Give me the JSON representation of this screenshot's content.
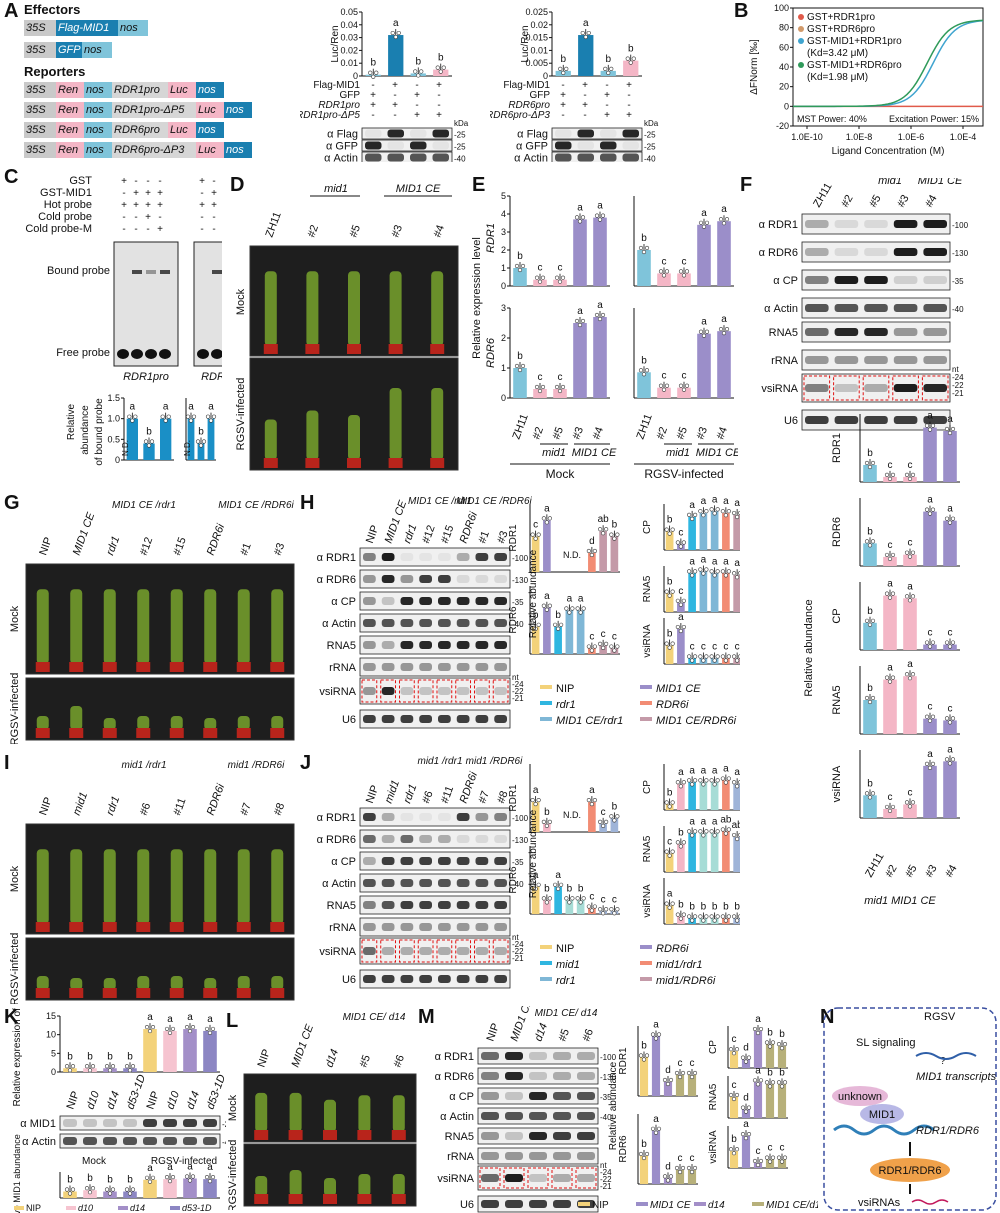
{
  "colors": {
    "zh11": "#7fc4da",
    "mid1": "#f4b6c6",
    "mid1ce": "#9b8ec9",
    "nip": "#f3d27a",
    "rdr1": "#2fb6e0",
    "rdr6i": "#f28c74",
    "mid1ce_rdr1": "#7fb7d6",
    "mid1ce_rdr6i": "#c49aa8",
    "mid1_rdr1": "#a7dcd6",
    "mid1_rdr6i": "#9fb4d8",
    "d10": "#f6c4d0",
    "d14": "#a38fc8",
    "d53": "#8c86c3",
    "mid1ce_d14": "#b7b07a",
    "gst": "#e05a4a",
    "gst_rdr6": "#d19a6a",
    "gst_mid1_rdr1": "#3fa4cf",
    "gst_mid1_rdr6": "#2f9a5a",
    "red_dash": "#e11111"
  },
  "panel_labels": [
    "A",
    "B",
    "C",
    "D",
    "E",
    "F",
    "G",
    "H",
    "I",
    "J",
    "K",
    "L",
    "M",
    "N"
  ],
  "panelA": {
    "effectors_title": "Effectors",
    "reporters_title": "Reporters",
    "effector_rows": [
      {
        "p": "35S",
        "g": "Flag-MID1",
        "t": "nos"
      },
      {
        "p": "35S",
        "g": "GFP",
        "t": "nos"
      }
    ],
    "reporter_rows": [
      {
        "p": "35S",
        "r": "Ren",
        "n": "nos",
        "pro": "RDR1pro",
        "luc": "Luc",
        "t": "nos"
      },
      {
        "p": "35S",
        "r": "Ren",
        "n": "nos",
        "pro": "RDR1pro-ΔP5",
        "luc": "Luc",
        "t": "nos"
      },
      {
        "p": "35S",
        "r": "Ren",
        "n": "nos",
        "pro": "RDR6pro",
        "luc": "Luc",
        "t": "nos"
      },
      {
        "p": "35S",
        "r": "Ren",
        "n": "nos",
        "pro": "RDR6pro-ΔP3",
        "luc": "Luc",
        "t": "nos"
      }
    ],
    "chart1": {
      "ylabel": "Luc/Ren",
      "yticks": [
        "0",
        "0.01",
        "0.02",
        "0.03",
        "0.04",
        "0.05"
      ],
      "values": [
        0.001,
        0.032,
        0.002,
        0.005
      ],
      "letters": [
        "b",
        "a",
        "b",
        "b"
      ],
      "row_labels": [
        "Flag-MID1",
        "GFP",
        "RDR1pro",
        "RDR1pro-ΔP5"
      ],
      "signs": [
        [
          "-",
          "+",
          "-",
          "+"
        ],
        [
          "+",
          "-",
          "+",
          "-"
        ],
        [
          "+",
          "+",
          "-",
          "-"
        ],
        [
          "-",
          "-",
          "+",
          "+"
        ]
      ],
      "blots": [
        "α Flag",
        "α GFP",
        "α Actin"
      ],
      "mw": [
        "-25",
        "-25",
        "-40"
      ]
    },
    "chart2": {
      "ylabel": "Luc/Ren",
      "yticks": [
        "0",
        "0.005",
        "0.01",
        "0.015",
        "0.02",
        "0.025"
      ],
      "values": [
        0.002,
        0.016,
        0.002,
        0.006
      ],
      "letters": [
        "b",
        "a",
        "b",
        "b"
      ],
      "row_labels": [
        "Flag-MID1",
        "GFP",
        "RDR6pro",
        "RDR6pro-ΔP3"
      ],
      "signs": [
        [
          "-",
          "+",
          "-",
          "+"
        ],
        [
          "+",
          "-",
          "+",
          "-"
        ],
        [
          "+",
          "+",
          "-",
          "-"
        ],
        [
          "-",
          "-",
          "+",
          "+"
        ]
      ],
      "blots": [
        "α Flag",
        "α GFP",
        "α Actin"
      ],
      "mw": [
        "-25",
        "-25",
        "-40"
      ]
    },
    "kda": "kDa"
  },
  "panelB": {
    "ylabel": "ΔFNorm [‰]",
    "xlabel": "Ligand Concentration (M)",
    "yticks": [
      "-20",
      "0",
      "20",
      "40",
      "60",
      "80",
      "100"
    ],
    "xticks": [
      "1.0E-10",
      "1.0E-8",
      "1.0E-6",
      "1.0E-4"
    ],
    "legend": [
      "GST+RDR1pro",
      "GST+RDR6pro",
      "GST-MID1+RDR1pro",
      "(Kd=3.42 μM)",
      "GST-MID1+RDR6pro",
      "(Kd=1.98 μM)"
    ],
    "note_left": "MST Power: 40%",
    "note_right": "Excitation Power: 15%"
  },
  "panelC": {
    "rows": [
      "GST",
      "GST-MID1",
      "Hot probe",
      "Cold probe",
      "Cold probe-M"
    ],
    "signs": [
      [
        "+",
        "-",
        "-",
        "-"
      ],
      [
        "-",
        "+",
        "+",
        "+"
      ],
      [
        "+",
        "+",
        "+",
        "+"
      ],
      [
        "-",
        "-",
        "+",
        "-"
      ],
      [
        "-",
        "-",
        "-",
        "+"
      ]
    ],
    "bound": "Bound probe",
    "free": "Free probe",
    "gel1": "RDR1pro",
    "gel2": "RDR6pro",
    "ylabel": "Relative abundance of bound probe",
    "nd": "N.D.",
    "yticks": [
      "0",
      "0.5",
      "1.0",
      "1.5"
    ],
    "bars1": [
      1.0,
      0.4,
      1.0
    ],
    "letters1": [
      "a",
      "b",
      "a"
    ],
    "bars2": [
      1.0,
      0.4,
      1.0
    ],
    "letters2": [
      "a",
      "b",
      "a"
    ]
  },
  "panelD": {
    "cols": [
      "ZH11",
      "#2",
      "#5",
      "#3",
      "#4"
    ],
    "groups": [
      "mid1",
      "MID1 CE"
    ],
    "rows": [
      "Mock",
      "RGSV-infected"
    ]
  },
  "panelE": {
    "ylabel": "Relative expression level",
    "genes": [
      "RDR1",
      "RDR6"
    ],
    "xcats": [
      "ZH11",
      "#2",
      "#5",
      "#3",
      "#4"
    ],
    "groups": [
      "mid1",
      "MID1 CE"
    ],
    "conds": [
      "Mock",
      "RGSV-infected"
    ],
    "yticks_top": [
      "0",
      "1",
      "2",
      "3",
      "4",
      "5"
    ],
    "yticks_bot": [
      "0",
      "1",
      "2",
      "3"
    ],
    "mock_rdr1": [
      1.0,
      0.35,
      0.35,
      3.7,
      3.8
    ],
    "mock_rdr1_letters": [
      "b",
      "c",
      "c",
      "a",
      "a"
    ],
    "rgsv_rdr1": [
      1.0,
      0.35,
      0.35,
      1.7,
      1.8
    ],
    "rgsv_rdr1_letters": [
      "b",
      "c",
      "c",
      "a",
      "a"
    ],
    "mock_rdr6": [
      1.0,
      0.3,
      0.3,
      2.5,
      2.7
    ],
    "mock_rdr6_letters": [
      "b",
      "c",
      "c",
      "a",
      "a"
    ],
    "rgsv_rdr6": [
      1.0,
      0.4,
      0.4,
      2.5,
      2.6
    ],
    "rgsv_rdr6_letters": [
      "b",
      "c",
      "c",
      "a",
      "a"
    ]
  },
  "panelF": {
    "cols": [
      "ZH11",
      "#2",
      "#5",
      "#3",
      "#4"
    ],
    "groups": [
      "mid1",
      "MID1 CE"
    ],
    "blots": [
      "α RDR1",
      "α RDR6",
      "α CP",
      "α Actin",
      "RNA5",
      "rRNA",
      "vsiRNA",
      "U6"
    ],
    "mw": [
      "-100",
      "-130",
      "-35",
      "-40",
      "",
      "",
      "",
      ""
    ],
    "nt": [
      "nt",
      "-24",
      "-22",
      "-21"
    ],
    "ylabel": "Relative abundance",
    "charts": [
      {
        "name": "RDR1",
        "values": [
          1.0,
          0.3,
          0.3,
          3.2,
          3.0
        ],
        "letters": [
          "b",
          "c",
          "c",
          "a",
          "a"
        ],
        "ymax": 4
      },
      {
        "name": "RDR6",
        "values": [
          1.0,
          0.4,
          0.5,
          2.4,
          2.0
        ],
        "letters": [
          "b",
          "c",
          "c",
          "a",
          "a"
        ],
        "ymax": 3
      },
      {
        "name": "CP",
        "values": [
          1.0,
          2.0,
          1.9,
          0.2,
          0.2
        ],
        "letters": [
          "b",
          "a",
          "a",
          "c",
          "c"
        ],
        "ymax": 2.5
      },
      {
        "name": "RNA5",
        "values": [
          1.0,
          1.6,
          1.7,
          0.45,
          0.4
        ],
        "letters": [
          "b",
          "a",
          "a",
          "c",
          "c"
        ],
        "ymax": 2
      },
      {
        "name": "vsiRNA",
        "values": [
          1.0,
          0.4,
          0.6,
          2.3,
          2.5
        ],
        "letters": [
          "b",
          "c",
          "c",
          "a",
          "a"
        ],
        "ymax": 3
      }
    ]
  },
  "panelG": {
    "cols": [
      "NIP",
      "MID1 CE",
      "rdr1",
      "#12",
      "#15",
      "RDR6i",
      "#1",
      "#3"
    ],
    "groups": [
      "MID1 CE /rdr1",
      "MID1 CE /RDR6i"
    ],
    "rows": [
      "Mock",
      "RGSV-infected"
    ]
  },
  "panelH": {
    "cols": [
      "NIP",
      "MID1 CE",
      "rdr1",
      "#12",
      "#15",
      "RDR6i",
      "#1",
      "#3"
    ],
    "groups": [
      "MID1 CE /rdr1",
      "MID1 CE /RDR6i"
    ],
    "blots": [
      "α RDR1",
      "α RDR6",
      "α CP",
      "α Actin",
      "RNA5",
      "rRNA",
      "vsiRNA",
      "U6"
    ],
    "mw": [
      "-100",
      "-130",
      "-35",
      "-40",
      "",
      "",
      "",
      ""
    ],
    "nt": [
      "nt",
      "-24",
      "-22",
      "-21"
    ],
    "ylabel": "Relative abundance",
    "nd": "N.D.",
    "legend": [
      "NIP",
      "MID1 CE",
      "rdr1",
      "RDR6i",
      "MID1 CE/rdr1",
      "MID1 CE/RDR6i"
    ],
    "rdr1": {
      "values": [
        1.3,
        1.9,
        0,
        0,
        0,
        0.7,
        1.5,
        1.3
      ],
      "letters": [
        "c",
        "a",
        "",
        "",
        "",
        "d",
        "ab",
        "b"
      ]
    },
    "rdr6": {
      "values": [
        1.0,
        1.7,
        1.0,
        1.6,
        1.6,
        0.2,
        0.3,
        0.2
      ],
      "letters": [
        "b",
        "a",
        "b",
        "a",
        "a",
        "c",
        "c",
        "c"
      ]
    },
    "cp": {
      "values": [
        1.0,
        0.3,
        1.8,
        2.0,
        2.1,
        2.0,
        1.9,
        1.8
      ],
      "letters": [
        "b",
        "c",
        "a",
        "a",
        "a",
        "a",
        "a",
        "a"
      ]
    },
    "rna5": {
      "values": [
        1.0,
        0.5,
        2.1,
        2.2,
        2.1,
        2.1,
        2.0,
        2.0
      ],
      "letters": [
        "b",
        "c",
        "a",
        "a",
        "a",
        "a",
        "a",
        "a"
      ]
    },
    "vsirna": {
      "values": [
        1.0,
        1.9,
        0.3,
        0.3,
        0.3,
        0.3,
        0.3,
        0.3
      ],
      "letters": [
        "b",
        "a",
        "c",
        "c",
        "c",
        "c",
        "c",
        "c"
      ]
    }
  },
  "panelI": {
    "cols": [
      "NIP",
      "mid1",
      "rdr1",
      "#6",
      "#11",
      "RDR6i",
      "#7",
      "#8"
    ],
    "groups": [
      "mid1 /rdr1",
      "mid1 /RDR6i"
    ],
    "rows": [
      "Mock",
      "RGSV-infected"
    ]
  },
  "panelJ": {
    "cols": [
      "NIP",
      "mid1",
      "rdr1",
      "#6",
      "#11",
      "RDR6i",
      "#7",
      "#8"
    ],
    "groups": [
      "mid1 /rdr1",
      "mid1 /RDR6i"
    ],
    "blots": [
      "α RDR1",
      "α RDR6",
      "α CP",
      "α Actin",
      "RNA5",
      "rRNA",
      "vsiRNA",
      "U6"
    ],
    "mw": [
      "-100",
      "-130",
      "-35",
      "-40",
      "",
      "",
      "",
      ""
    ],
    "nt": [
      "nt",
      "-24",
      "-22",
      "-21"
    ],
    "ylabel": "Relative abundance",
    "nd": "N.D.",
    "legend": [
      "NIP",
      "RDR6i",
      "mid1",
      "mid1/rdr1",
      "rdr1",
      "mid1/RDR6i"
    ],
    "rdr1": {
      "values": [
        1.1,
        0.3,
        0,
        0,
        0,
        1.1,
        0.3,
        0.5
      ],
      "letters": [
        "a",
        "b",
        "",
        "",
        "",
        "a",
        "c",
        "b"
      ]
    },
    "rdr6": {
      "values": [
        1.0,
        0.5,
        1.0,
        0.5,
        0.5,
        0.2,
        0.1,
        0.1
      ],
      "letters": [
        "a",
        "b",
        "a",
        "b",
        "b",
        "c",
        "c",
        "c"
      ]
    },
    "cp": {
      "values": [
        0.3,
        1.4,
        1.5,
        1.5,
        1.5,
        1.6,
        1.4,
        1.5
      ],
      "letters": [
        "b",
        "a",
        "a",
        "a",
        "a",
        "a",
        "a",
        "a"
      ]
    },
    "rna5": {
      "values": [
        1.0,
        1.5,
        2.1,
        2.1,
        2.1,
        2.2,
        1.9,
        2.1
      ],
      "letters": [
        "c",
        "b",
        "a",
        "a",
        "a",
        "ab",
        "ab",
        "a"
      ]
    },
    "vsirna": {
      "values": [
        1.0,
        0.4,
        0.3,
        0.3,
        0.3,
        0.3,
        0.3,
        0.3
      ],
      "letters": [
        "a",
        "b",
        "b",
        "b",
        "b",
        "b",
        "b",
        "b"
      ]
    }
  },
  "panelK": {
    "ylabel_top": "Relative expression of MID1",
    "ylabel_bot": "Relative MID1 abundance",
    "cats": [
      "NIP",
      "d10",
      "d14",
      "d53-1D",
      "NIP",
      "d10",
      "d14",
      "d53-1D"
    ],
    "conds": [
      "Mock",
      "RGSV-infected"
    ],
    "expr": [
      1.0,
      1.0,
      1.0,
      1.0,
      11.5,
      11.0,
      11.5,
      11.0
    ],
    "expr_letters": [
      "b",
      "b",
      "b",
      "b",
      "a",
      "a",
      "a",
      "a"
    ],
    "expr_yticks": [
      "0",
      "5",
      "10",
      "15"
    ],
    "blots": [
      "α MID1",
      "α Actin"
    ],
    "mw": [
      "-25",
      "-40"
    ],
    "kda": "kDa",
    "abund": [
      1.0,
      1.2,
      1.0,
      1.0,
      2.8,
      2.9,
      3.0,
      2.9
    ],
    "abund_letters": [
      "b",
      "b",
      "b",
      "b",
      "a",
      "a",
      "a",
      "a"
    ],
    "abund_yticks": [
      "0",
      "1",
      "2",
      "3",
      "4"
    ],
    "legend": [
      "NIP",
      "d10",
      "d14",
      "d53-1D"
    ]
  },
  "panelL": {
    "cols": [
      "NIP",
      "MID1 CE",
      "d14",
      "#5",
      "#6"
    ],
    "groups": [
      "MID1 CE/ d14"
    ],
    "rows": [
      "Mock",
      "RGSV-infected"
    ]
  },
  "panelM": {
    "cols": [
      "NIP",
      "MID1 CE",
      "d14",
      "#5",
      "#6"
    ],
    "groups": [
      "MID1 CE/ d14"
    ],
    "blots": [
      "α RDR1",
      "α RDR6",
      "α CP",
      "α Actin",
      "RNA5",
      "rRNA",
      "vsiRNA",
      "U6"
    ],
    "mw": [
      "-100",
      "-130",
      "-35",
      "-40",
      "",
      "",
      "",
      ""
    ],
    "nt": [
      "nt",
      "-24",
      "-22",
      "-21"
    ],
    "ylabel": "Relative abundance",
    "legend": [
      "NIP",
      "MID1 CE",
      "d14",
      "MID1 CE/d14"
    ],
    "rdr1": {
      "values": [
        1.1,
        1.7,
        0.4,
        0.6,
        0.6
      ],
      "letters": [
        "b",
        "a",
        "d",
        "c",
        "c"
      ]
    },
    "rdr6": {
      "values": [
        1.0,
        1.9,
        0.2,
        0.5,
        0.5
      ],
      "letters": [
        "b",
        "a",
        "d",
        "c",
        "c"
      ]
    },
    "cp": {
      "values": [
        1.0,
        0.5,
        2.2,
        1.4,
        1.3
      ],
      "letters": [
        "c",
        "d",
        "a",
        "b",
        "b"
      ]
    },
    "rna5": {
      "values": [
        1.0,
        0.4,
        1.7,
        1.6,
        1.6
      ],
      "letters": [
        "c",
        "d",
        "a",
        "b",
        "b"
      ]
    },
    "vsirna": {
      "values": [
        1.0,
        1.9,
        0.3,
        0.5,
        0.5
      ],
      "letters": [
        "b",
        "a",
        "c",
        "c",
        "c"
      ]
    }
  },
  "panelN": {
    "sl": "SL signaling",
    "rgsv": "RGSV",
    "q": "?",
    "mid1t": "MID1 transcripts",
    "unknown": "unknown",
    "mid1": "MID1",
    "genes": "RDR1/RDR6",
    "prot": "RDR1/RDR6",
    "out": "vsiRNAs"
  }
}
